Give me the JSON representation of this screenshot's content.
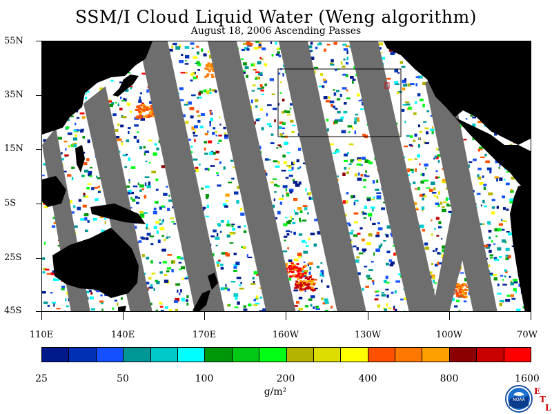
{
  "title": "SSM/I Cloud Liquid Water (Weng algorithm)",
  "subtitle": "August 18, 2006  Ascending Passes",
  "map": {
    "projection_extent": {
      "lon": [
        "110E",
        "70W"
      ],
      "lat": [
        "45S",
        "55N"
      ]
    },
    "lat_labels": [
      "55N",
      "35N",
      "15N",
      "5S",
      "25S",
      "45S"
    ],
    "lon_labels": [
      "110E",
      "140E",
      "170E",
      "160W",
      "130W",
      "100W",
      "70W"
    ],
    "missing_data_color": "#6e6e6e",
    "land_color": "#000000",
    "clear_color": "#ffffff"
  },
  "colorbar": {
    "colors": [
      "#001a8c",
      "#0030b4",
      "#1450ff",
      "#009696",
      "#00c8c8",
      "#00ffff",
      "#00960a",
      "#00c814",
      "#00ff14",
      "#b4b400",
      "#dcdc00",
      "#ffff00",
      "#ff5000",
      "#ff7800",
      "#ffa000",
      "#8c0000",
      "#c80000",
      "#ff0000"
    ],
    "tick_labels": [
      "25",
      "50",
      "100",
      "200",
      "400",
      "800",
      "1600"
    ],
    "unit": "g/m²"
  },
  "logo": {
    "name": "noaa-logo",
    "text": "NOAA",
    "lab_letters": [
      "E",
      "T",
      "L"
    ]
  }
}
